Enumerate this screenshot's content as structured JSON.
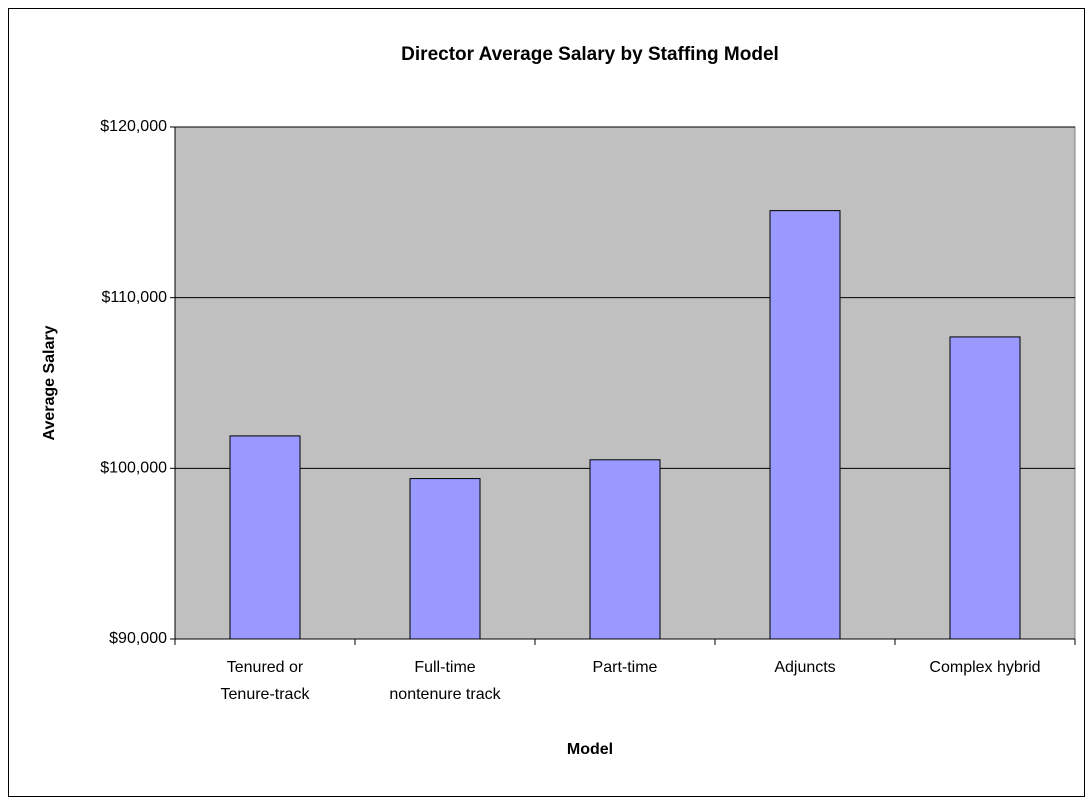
{
  "chart_data": {
    "type": "bar",
    "title": "Director Average Salary by Staffing Model",
    "x_label": "Model",
    "y_label": "Average Salary",
    "categories": [
      "Tenured or\nTenure-track",
      "Full-time\nnontenure track",
      "Part-time",
      "Adjuncts",
      "Complex hybrid"
    ],
    "values": [
      101900,
      99400,
      100500,
      115100,
      107700
    ],
    "color": "#9999ff",
    "ylim": [
      90000,
      120000
    ],
    "yticks": [
      {
        "value": 90000,
        "label": "$90,000"
      },
      {
        "value": 100000,
        "label": "$100,000"
      },
      {
        "value": 110000,
        "label": "$110,000"
      },
      {
        "value": 120000,
        "label": "$120,000"
      }
    ],
    "grid": true
  }
}
